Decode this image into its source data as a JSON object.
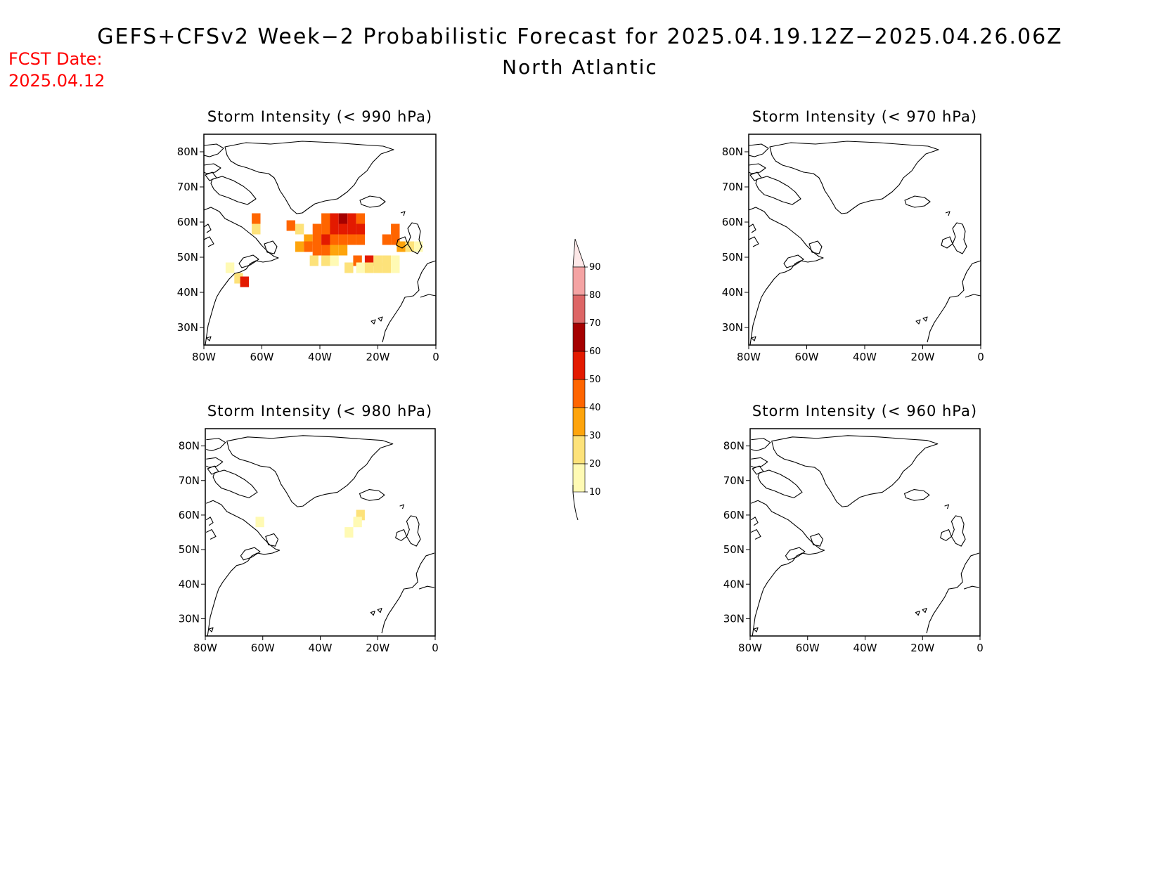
{
  "header": {
    "title": "GEFS+CFSv2 Week−2 Probabilistic Forecast for 2025.04.19.12Z−2025.04.26.06Z",
    "subtitle": "North Atlantic",
    "fcst_label": "FCST Date:",
    "fcst_date": "2025.04.12"
  },
  "axes": {
    "lat_ticks": [
      "80N",
      "70N",
      "60N",
      "50N",
      "40N",
      "30N"
    ],
    "lat_values": [
      80,
      70,
      60,
      50,
      40,
      30
    ],
    "lon_ticks": [
      "80W",
      "60W",
      "40W",
      "20W",
      "0"
    ],
    "lon_values": [
      -80,
      -60,
      -40,
      -20,
      0
    ],
    "lat_range": [
      25,
      85
    ],
    "lon_range": [
      -80,
      0
    ]
  },
  "colorbar": {
    "labels": [
      "10",
      "20",
      "30",
      "40",
      "50",
      "60",
      "70",
      "80",
      "90"
    ],
    "colors": [
      "#fffab4",
      "#fde27a",
      "#fea40c",
      "#ff6500",
      "#e31a00",
      "#a50000",
      "#dd6666",
      "#f4a3a3",
      "#fde8e8"
    ]
  },
  "chart_data": [
    {
      "type": "heatmap",
      "title": "Storm Intensity (< 990 hPa)",
      "cells": [
        {
          "lon": -62,
          "lat": 61,
          "v": 40
        },
        {
          "lon": -62,
          "lat": 58,
          "v": 20
        },
        {
          "lon": -50,
          "lat": 59,
          "v": 40
        },
        {
          "lon": -47,
          "lat": 58,
          "v": 20
        },
        {
          "lon": -38,
          "lat": 61,
          "v": 40
        },
        {
          "lon": -35,
          "lat": 61,
          "v": 50
        },
        {
          "lon": -32,
          "lat": 61,
          "v": 60
        },
        {
          "lon": -29,
          "lat": 61,
          "v": 50
        },
        {
          "lon": -26,
          "lat": 61,
          "v": 40
        },
        {
          "lon": -41,
          "lat": 58,
          "v": 40
        },
        {
          "lon": -38,
          "lat": 58,
          "v": 40
        },
        {
          "lon": -35,
          "lat": 58,
          "v": 50
        },
        {
          "lon": -32,
          "lat": 58,
          "v": 50
        },
        {
          "lon": -29,
          "lat": 58,
          "v": 50
        },
        {
          "lon": -26,
          "lat": 58,
          "v": 50
        },
        {
          "lon": -44,
          "lat": 55,
          "v": 30
        },
        {
          "lon": -41,
          "lat": 55,
          "v": 40
        },
        {
          "lon": -38,
          "lat": 55,
          "v": 50
        },
        {
          "lon": -35,
          "lat": 55,
          "v": 40
        },
        {
          "lon": -32,
          "lat": 55,
          "v": 40
        },
        {
          "lon": -29,
          "lat": 55,
          "v": 40
        },
        {
          "lon": -26,
          "lat": 55,
          "v": 40
        },
        {
          "lon": -47,
          "lat": 53,
          "v": 30
        },
        {
          "lon": -44,
          "lat": 53,
          "v": 40
        },
        {
          "lon": -41,
          "lat": 52,
          "v": 40
        },
        {
          "lon": -38,
          "lat": 52,
          "v": 40
        },
        {
          "lon": -35,
          "lat": 52,
          "v": 30
        },
        {
          "lon": -32,
          "lat": 52,
          "v": 30
        },
        {
          "lon": -42,
          "lat": 49,
          "v": 20
        },
        {
          "lon": -38,
          "lat": 49,
          "v": 20
        },
        {
          "lon": -35,
          "lat": 49,
          "v": 10
        },
        {
          "lon": -27,
          "lat": 49,
          "v": 40
        },
        {
          "lon": -23,
          "lat": 49,
          "v": 50
        },
        {
          "lon": -20,
          "lat": 49,
          "v": 20
        },
        {
          "lon": -17,
          "lat": 49,
          "v": 20
        },
        {
          "lon": -14,
          "lat": 49,
          "v": 10
        },
        {
          "lon": -30,
          "lat": 47,
          "v": 20
        },
        {
          "lon": -26,
          "lat": 47,
          "v": 10
        },
        {
          "lon": -23,
          "lat": 47,
          "v": 20
        },
        {
          "lon": -20,
          "lat": 47,
          "v": 20
        },
        {
          "lon": -17,
          "lat": 47,
          "v": 20
        },
        {
          "lon": -14,
          "lat": 47,
          "v": 10
        },
        {
          "lon": -14,
          "lat": 58,
          "v": 40
        },
        {
          "lon": -17,
          "lat": 55,
          "v": 40
        },
        {
          "lon": -14,
          "lat": 55,
          "v": 40
        },
        {
          "lon": -12,
          "lat": 53,
          "v": 30
        },
        {
          "lon": -9,
          "lat": 53,
          "v": 20
        },
        {
          "lon": -6,
          "lat": 53,
          "v": 10
        },
        {
          "lon": -71,
          "lat": 47,
          "v": 10
        },
        {
          "lon": -68,
          "lat": 44,
          "v": 20
        },
        {
          "lon": -66,
          "lat": 43,
          "v": 50
        }
      ]
    },
    {
      "type": "heatmap",
      "title": "Storm Intensity (< 970 hPa)",
      "cells": []
    },
    {
      "type": "heatmap",
      "title": "Storm Intensity (< 980 hPa)",
      "cells": [
        {
          "lon": -26,
          "lat": 60,
          "v": 20
        },
        {
          "lon": -27,
          "lat": 58,
          "v": 10
        },
        {
          "lon": -30,
          "lat": 55,
          "v": 10
        },
        {
          "lon": -61,
          "lat": 58,
          "v": 10
        }
      ]
    },
    {
      "type": "heatmap",
      "title": "Storm Intensity (< 960 hPa)",
      "cells": []
    }
  ]
}
